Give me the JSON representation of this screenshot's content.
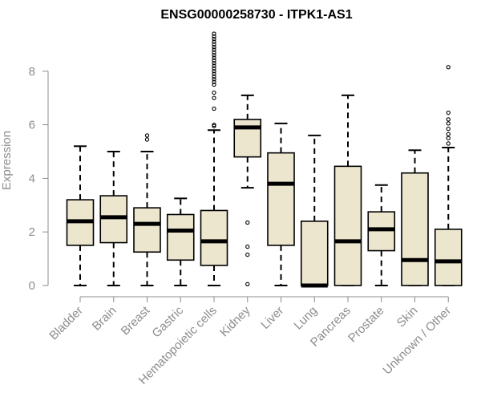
{
  "chart_data": {
    "type": "boxplot",
    "title": "ENSG00000258730 - ITPK1-AS1",
    "xlabel": "",
    "ylabel": "Expression",
    "ylim": [
      0,
      9.4
    ],
    "yticks": [
      0,
      2,
      4,
      6,
      8
    ],
    "grid": false,
    "legend": "none",
    "box_fill": "#ede6cf",
    "categories": [
      "Bladder",
      "Brain",
      "Breast",
      "Gastric",
      "Hematopoietic cells",
      "Kidney",
      "Liver",
      "Lung",
      "Pancreas",
      "Prostate",
      "Skin",
      "Unknown / Other"
    ],
    "boxes": [
      {
        "category": "Bladder",
        "min": 0.0,
        "q1": 1.5,
        "median": 2.4,
        "q3": 3.2,
        "max": 5.2,
        "outliers": []
      },
      {
        "category": "Brain",
        "min": 0.0,
        "q1": 1.6,
        "median": 2.55,
        "q3": 3.35,
        "max": 5.0,
        "outliers": []
      },
      {
        "category": "Breast",
        "min": 0.0,
        "q1": 1.25,
        "median": 2.3,
        "q3": 2.9,
        "max": 5.0,
        "outliers": [
          5.45,
          5.6
        ]
      },
      {
        "category": "Gastric",
        "min": 0.0,
        "q1": 0.95,
        "median": 2.05,
        "q3": 2.65,
        "max": 3.25,
        "outliers": []
      },
      {
        "category": "Hematopoietic cells",
        "min": 0.0,
        "q1": 0.75,
        "median": 1.65,
        "q3": 2.8,
        "max": 5.8,
        "outliers": [
          5.95,
          6.0,
          6.6,
          7.0,
          7.2,
          7.5,
          7.6,
          7.7,
          7.8,
          7.9,
          8.0,
          8.1,
          8.2,
          8.3,
          8.4,
          8.5,
          8.6,
          8.7,
          8.8,
          8.9,
          9.0,
          9.1,
          9.2,
          9.3,
          9.4
        ]
      },
      {
        "category": "Kidney",
        "min": 3.65,
        "q1": 4.8,
        "median": 5.9,
        "q3": 6.2,
        "max": 7.1,
        "outliers": [
          2.35,
          1.45,
          1.15,
          0.05
        ]
      },
      {
        "category": "Liver",
        "min": 0.0,
        "q1": 1.5,
        "median": 3.8,
        "q3": 4.95,
        "max": 6.05,
        "outliers": []
      },
      {
        "category": "Lung",
        "min": 0.0,
        "q1": 0.0,
        "median": 0.0,
        "q3": 2.4,
        "max": 5.6,
        "outliers": []
      },
      {
        "category": "Pancreas",
        "min": 0.0,
        "q1": 0.0,
        "median": 1.65,
        "q3": 4.45,
        "max": 7.1,
        "outliers": []
      },
      {
        "category": "Prostate",
        "min": 0.0,
        "q1": 1.3,
        "median": 2.1,
        "q3": 2.75,
        "max": 3.75,
        "outliers": []
      },
      {
        "category": "Skin",
        "min": 0.0,
        "q1": 0.0,
        "median": 0.95,
        "q3": 4.2,
        "max": 5.05,
        "outliers": []
      },
      {
        "category": "Unknown / Other",
        "min": 0.0,
        "q1": 0.0,
        "median": 0.9,
        "q3": 2.1,
        "max": 5.15,
        "outliers": [
          5.3,
          5.5,
          5.65,
          5.85,
          6.05,
          6.2,
          6.45,
          8.15
        ]
      }
    ]
  }
}
